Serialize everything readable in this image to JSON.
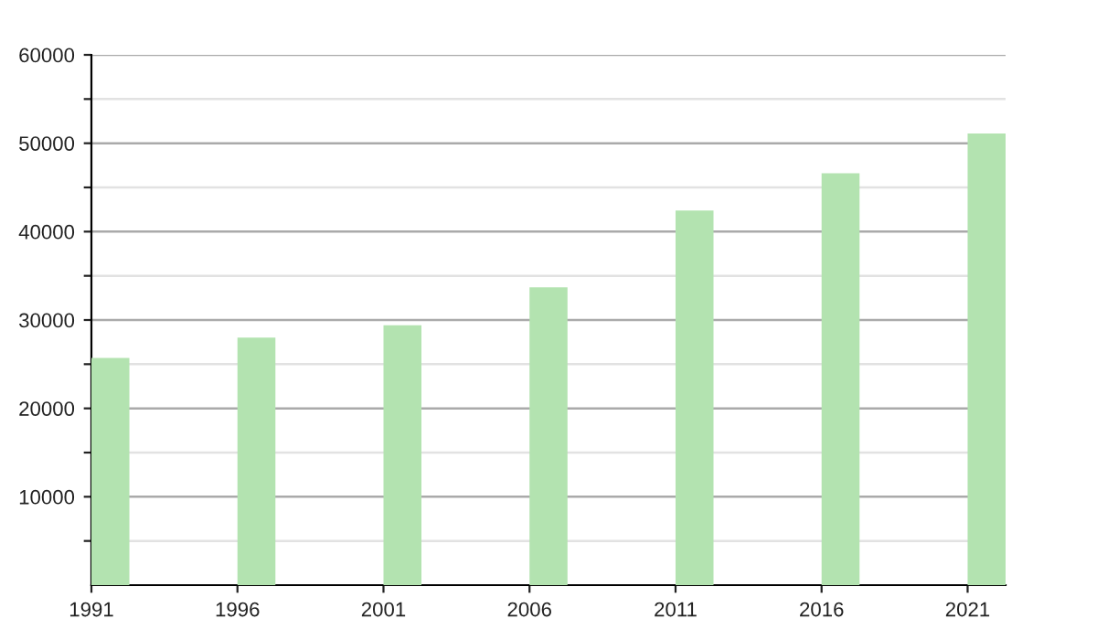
{
  "chart_data": {
    "type": "bar",
    "categories": [
      "1991",
      "1996",
      "2001",
      "2006",
      "2011",
      "2016",
      "2021"
    ],
    "values": [
      25700,
      28000,
      29400,
      33700,
      42400,
      46600,
      51100
    ],
    "color": "#b3e3b0",
    "ylim": [
      0,
      60000
    ],
    "yticks": [
      {
        "value": 5000,
        "label": null
      },
      10000,
      {
        "value": 15000,
        "label": null
      },
      20000,
      {
        "value": 25000,
        "label": null
      },
      30000,
      {
        "value": 35000,
        "label": null
      },
      40000,
      {
        "value": 45000,
        "label": null
      },
      50000,
      {
        "value": 55000,
        "label": null
      },
      60000
    ],
    "grid": "y",
    "legend": false
  }
}
